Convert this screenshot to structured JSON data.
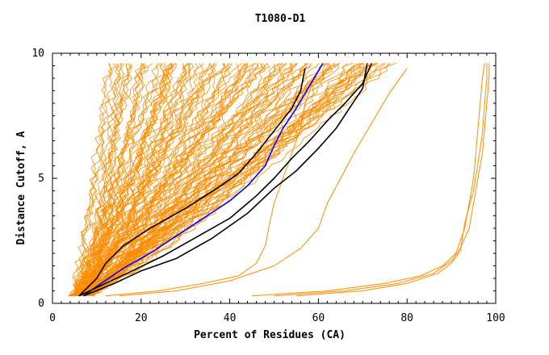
{
  "chart_data": {
    "type": "line",
    "title": "T1080-D1",
    "xlabel": "Percent of Residues (CA)",
    "ylabel": "Distance Cutoff, A",
    "xlim": [
      0,
      100
    ],
    "ylim": [
      0,
      10
    ],
    "x_ticks": [
      "0",
      "20",
      "40",
      "60",
      "80",
      "100"
    ],
    "y_ticks": [
      "0",
      "5",
      "10"
    ],
    "grid": false,
    "colors": {
      "background_models": "#ff8c00",
      "highlight": "#000000",
      "blue": "#0000ff",
      "axes": "#000000"
    },
    "highlighted_series": [
      {
        "color": "#000000",
        "points": [
          [
            6,
            0.3
          ],
          [
            10,
            1
          ],
          [
            12,
            1.6
          ],
          [
            16,
            2.3
          ],
          [
            22,
            3
          ],
          [
            30,
            3.8
          ],
          [
            38,
            4.7
          ],
          [
            42,
            5.2
          ],
          [
            46,
            6
          ],
          [
            50,
            6.9
          ],
          [
            54,
            7.8
          ],
          [
            56,
            8.5
          ],
          [
            57,
            9.4
          ]
        ]
      },
      {
        "color": "#0000ff",
        "points": [
          [
            7,
            0.3
          ],
          [
            11,
            0.8
          ],
          [
            16,
            1.4
          ],
          [
            22,
            2
          ],
          [
            28,
            2.7
          ],
          [
            34,
            3.4
          ],
          [
            40,
            4.1
          ],
          [
            44,
            4.7
          ],
          [
            48,
            5.5
          ],
          [
            50,
            6.3
          ],
          [
            52,
            7
          ],
          [
            55,
            7.8
          ],
          [
            58,
            8.7
          ],
          [
            61,
            9.6
          ]
        ]
      },
      {
        "color": "#000000",
        "points": [
          [
            6,
            0.3
          ],
          [
            12,
            0.8
          ],
          [
            18,
            1.3
          ],
          [
            25,
            1.9
          ],
          [
            32,
            2.6
          ],
          [
            40,
            3.4
          ],
          [
            46,
            4.3
          ],
          [
            50,
            5
          ],
          [
            54,
            5.8
          ],
          [
            58,
            6.5
          ],
          [
            62,
            7.3
          ],
          [
            66,
            8
          ],
          [
            70,
            8.8
          ],
          [
            72,
            9.6
          ]
        ]
      },
      {
        "color": "#000000",
        "points": [
          [
            7,
            0.3
          ],
          [
            14,
            0.8
          ],
          [
            20,
            1.3
          ],
          [
            28,
            1.8
          ],
          [
            36,
            2.6
          ],
          [
            44,
            3.6
          ],
          [
            50,
            4.6
          ],
          [
            55,
            5.3
          ],
          [
            60,
            6.2
          ],
          [
            64,
            7
          ],
          [
            67,
            7.8
          ],
          [
            70,
            8.6
          ],
          [
            71,
            9.6
          ]
        ]
      }
    ],
    "outlier_series": [
      {
        "color": "#ff8c00",
        "points": [
          [
            12,
            0.3
          ],
          [
            24,
            0.5
          ],
          [
            34,
            0.8
          ],
          [
            42,
            1.1
          ],
          [
            46,
            1.6
          ],
          [
            48,
            2.3
          ],
          [
            49,
            3.2
          ],
          [
            50,
            4
          ],
          [
            52,
            5
          ],
          [
            54,
            6
          ],
          [
            56,
            7
          ],
          [
            57,
            8
          ],
          [
            59,
            9
          ]
        ]
      },
      {
        "color": "#ff8c00",
        "points": [
          [
            15,
            0.3
          ],
          [
            28,
            0.5
          ],
          [
            40,
            0.9
          ],
          [
            50,
            1.5
          ],
          [
            56,
            2.2
          ],
          [
            60,
            3
          ],
          [
            62,
            4
          ],
          [
            65,
            5
          ],
          [
            68,
            6
          ],
          [
            72,
            7.2
          ],
          [
            76,
            8.4
          ],
          [
            80,
            9.4
          ]
        ]
      },
      {
        "color": "#ff8c00",
        "points": [
          [
            45,
            0.3
          ],
          [
            62,
            0.5
          ],
          [
            75,
            0.8
          ],
          [
            83,
            1.1
          ],
          [
            88,
            1.5
          ],
          [
            91,
            2
          ],
          [
            93,
            3
          ],
          [
            94,
            4
          ],
          [
            95,
            5
          ],
          [
            95.5,
            6
          ],
          [
            96,
            7
          ],
          [
            96.5,
            8
          ],
          [
            97,
            9
          ],
          [
            97.5,
            9.6
          ]
        ]
      },
      {
        "color": "#ff8c00",
        "points": [
          [
            50,
            0.3
          ],
          [
            66,
            0.5
          ],
          [
            78,
            0.8
          ],
          [
            86,
            1.2
          ],
          [
            90,
            1.7
          ],
          [
            92,
            2.2
          ],
          [
            94,
            3
          ],
          [
            95,
            4
          ],
          [
            96,
            5
          ],
          [
            97,
            6
          ],
          [
            97.5,
            7
          ],
          [
            98,
            8
          ],
          [
            98.5,
            9
          ],
          [
            98.5,
            9.6
          ]
        ]
      },
      {
        "color": "#ff8c00",
        "points": [
          [
            55,
            0.3
          ],
          [
            70,
            0.5
          ],
          [
            80,
            0.8
          ],
          [
            87,
            1.2
          ],
          [
            90,
            1.6
          ],
          [
            92,
            2.1
          ],
          [
            93,
            3.2
          ],
          [
            95,
            4.5
          ],
          [
            96,
            5.6
          ],
          [
            97,
            6.8
          ],
          [
            97.5,
            8
          ],
          [
            98,
            9
          ],
          [
            98,
            9.6
          ]
        ]
      }
    ],
    "background_model_count": 120
  }
}
